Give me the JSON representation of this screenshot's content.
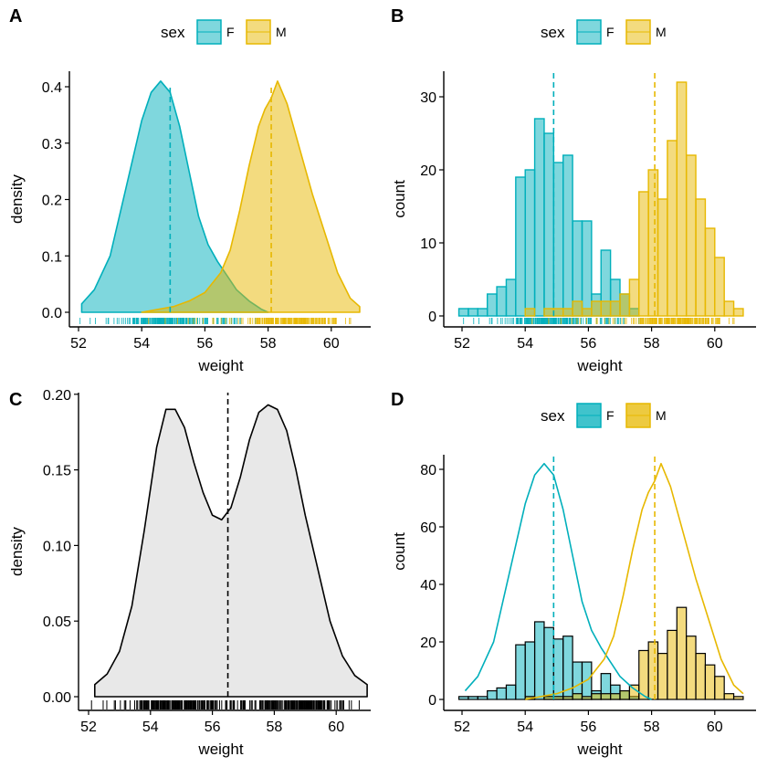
{
  "colors": {
    "F": "#00AFBB",
    "M": "#E7B800",
    "overlay": "#95B464",
    "axis": "#000000",
    "gray_fill": "#E8E8E8"
  },
  "chart_data": [
    {
      "panel": "A",
      "type": "area",
      "xlabel": "weight",
      "ylabel": "density",
      "xlim": [
        52,
        61
      ],
      "ylim": [
        0,
        0.4
      ],
      "x_ticks": [
        "52",
        "54",
        "56",
        "58",
        "60"
      ],
      "y_ticks": [
        "0.0",
        "0.1",
        "0.2",
        "0.3",
        "0.4"
      ],
      "legend": {
        "title": "sex",
        "entries": [
          "F",
          "M"
        ],
        "position": "top"
      },
      "series": [
        {
          "name": "F",
          "x": [
            52.1,
            52.5,
            53.0,
            53.5,
            54.0,
            54.3,
            54.6,
            54.9,
            55.2,
            55.5,
            55.8,
            56.1,
            56.4,
            56.7,
            57.0,
            57.4,
            57.8,
            58.0
          ],
          "y": [
            0.015,
            0.04,
            0.1,
            0.22,
            0.34,
            0.39,
            0.41,
            0.39,
            0.33,
            0.25,
            0.17,
            0.12,
            0.09,
            0.065,
            0.04,
            0.02,
            0.005,
            0.0
          ],
          "mean": 54.9
        },
        {
          "name": "M",
          "x": [
            54.0,
            55.0,
            55.5,
            56.0,
            56.5,
            56.8,
            57.1,
            57.4,
            57.7,
            57.9,
            58.1,
            58.3,
            58.6,
            59.0,
            59.4,
            59.8,
            60.2,
            60.6,
            60.9
          ],
          "y": [
            0.0,
            0.01,
            0.02,
            0.035,
            0.07,
            0.11,
            0.18,
            0.26,
            0.33,
            0.36,
            0.38,
            0.41,
            0.37,
            0.29,
            0.21,
            0.14,
            0.07,
            0.025,
            0.01
          ],
          "mean": 58.1
        }
      ]
    },
    {
      "panel": "B",
      "type": "bar",
      "xlabel": "weight",
      "ylabel": "count",
      "xlim": [
        52,
        61
      ],
      "ylim": [
        0,
        32
      ],
      "x_ticks": [
        "52",
        "54",
        "56",
        "58",
        "60"
      ],
      "y_ticks": [
        "0",
        "10",
        "20",
        "30"
      ],
      "legend": {
        "title": "sex",
        "entries": [
          "F",
          "M"
        ],
        "position": "top"
      },
      "bin_start": 51.9,
      "bin_width": 0.3,
      "series": [
        {
          "name": "F",
          "values": [
            1,
            1,
            1,
            3,
            4,
            5,
            19,
            20,
            27,
            25,
            21,
            22,
            13,
            13,
            3,
            9,
            5,
            3,
            1,
            0,
            0,
            0,
            0,
            0,
            0,
            0,
            0,
            0,
            0,
            0
          ],
          "mean": 54.9
        },
        {
          "name": "M",
          "values": [
            0,
            0,
            0,
            0,
            0,
            0,
            0,
            1,
            0,
            1,
            1,
            1,
            2,
            1,
            2,
            2,
            2,
            3,
            5,
            17,
            20,
            16,
            24,
            32,
            22,
            16,
            12,
            8,
            2,
            1
          ],
          "mean": 58.1
        }
      ]
    },
    {
      "panel": "C",
      "type": "area",
      "xlabel": "weight",
      "ylabel": "density",
      "xlim": [
        52,
        61
      ],
      "ylim": [
        0,
        0.2
      ],
      "x_ticks": [
        "52",
        "54",
        "56",
        "58",
        "60"
      ],
      "y_ticks": [
        "0.00",
        "0.05",
        "0.10",
        "0.15",
        "0.20"
      ],
      "series": [
        {
          "x": [
            52.2,
            52.6,
            53.0,
            53.4,
            53.8,
            54.2,
            54.5,
            54.8,
            55.1,
            55.4,
            55.7,
            56.0,
            56.3,
            56.6,
            56.9,
            57.2,
            57.5,
            57.8,
            58.1,
            58.4,
            58.7,
            59.0,
            59.4,
            59.8,
            60.2,
            60.6,
            61.0
          ],
          "y": [
            0.008,
            0.015,
            0.03,
            0.06,
            0.11,
            0.165,
            0.19,
            0.19,
            0.178,
            0.155,
            0.135,
            0.12,
            0.117,
            0.125,
            0.145,
            0.17,
            0.188,
            0.193,
            0.19,
            0.176,
            0.15,
            0.12,
            0.085,
            0.05,
            0.027,
            0.014,
            0.008
          ],
          "mean": 56.5
        }
      ]
    },
    {
      "panel": "D",
      "type": "bar",
      "xlabel": "weight",
      "ylabel": "count",
      "xlim": [
        52,
        61
      ],
      "ylim": [
        0,
        85
      ],
      "x_ticks": [
        "52",
        "54",
        "56",
        "58",
        "60"
      ],
      "y_ticks": [
        "0",
        "20",
        "40",
        "60",
        "80"
      ],
      "legend": {
        "title": "sex",
        "entries": [
          "F",
          "M"
        ],
        "position": "top"
      },
      "bin_start": 51.9,
      "bin_width": 0.3,
      "series": [
        {
          "name": "F",
          "values": [
            1,
            1,
            1,
            3,
            4,
            5,
            19,
            20,
            27,
            25,
            21,
            22,
            13,
            13,
            3,
            9,
            5,
            3,
            1,
            0,
            0,
            0,
            0,
            0,
            0,
            0,
            0,
            0,
            0,
            0
          ],
          "mean": 54.9
        },
        {
          "name": "M",
          "values": [
            0,
            0,
            0,
            0,
            0,
            0,
            0,
            1,
            0,
            1,
            1,
            1,
            2,
            1,
            2,
            2,
            2,
            3,
            5,
            17,
            20,
            16,
            24,
            32,
            22,
            16,
            12,
            8,
            2,
            1
          ],
          "mean": 58.1
        }
      ],
      "density_scale": 200
    }
  ]
}
